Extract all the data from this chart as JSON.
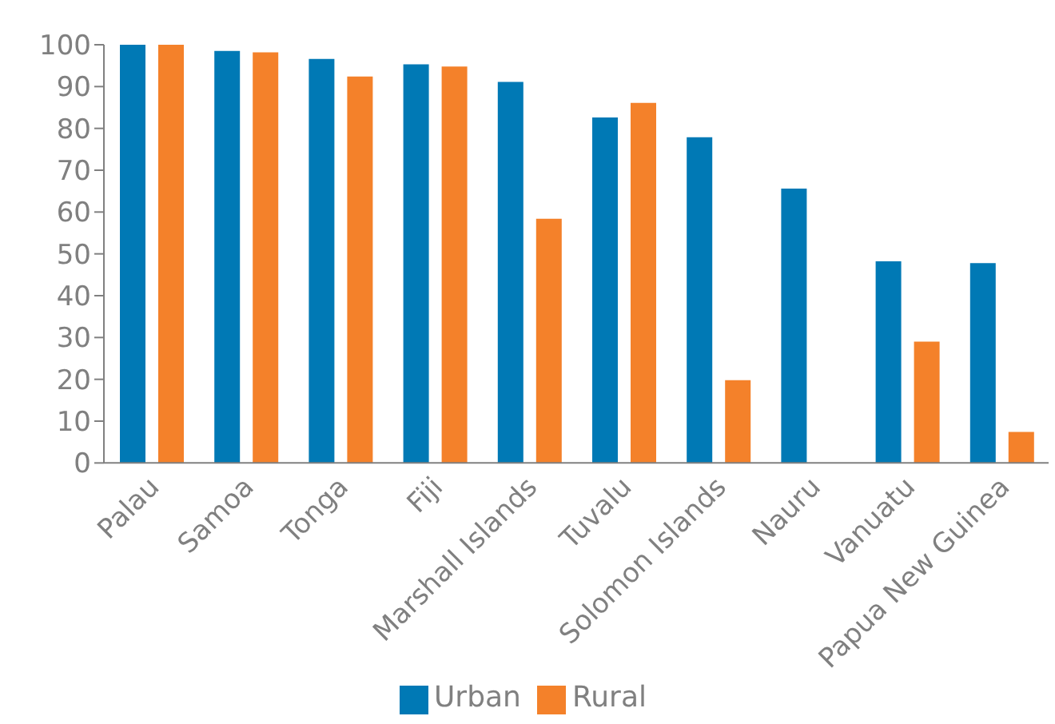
{
  "chart_data": {
    "type": "bar",
    "categories": [
      "Palau",
      "Samoa",
      "Tonga",
      "Fiji",
      "Marshall Islands",
      "Tuvalu",
      "Solomon Islands",
      "Nauru",
      "Vanuatu",
      "Papua New Guinea"
    ],
    "series": [
      {
        "name": "Urban",
        "color": "#0079b5",
        "values": [
          100,
          98.5,
          96.6,
          95.3,
          91.1,
          82.6,
          77.9,
          65.6,
          48.2,
          47.8
        ]
      },
      {
        "name": "Rural",
        "color": "#f4812a",
        "values": [
          100,
          98.2,
          92.4,
          94.8,
          58.4,
          86.1,
          19.8,
          null,
          29.0,
          7.4
        ]
      }
    ],
    "ylim": [
      0,
      100
    ],
    "yticks": [
      0,
      10,
      20,
      30,
      40,
      50,
      60,
      70,
      80,
      90,
      100
    ],
    "grid": false,
    "legend": "bottom"
  }
}
